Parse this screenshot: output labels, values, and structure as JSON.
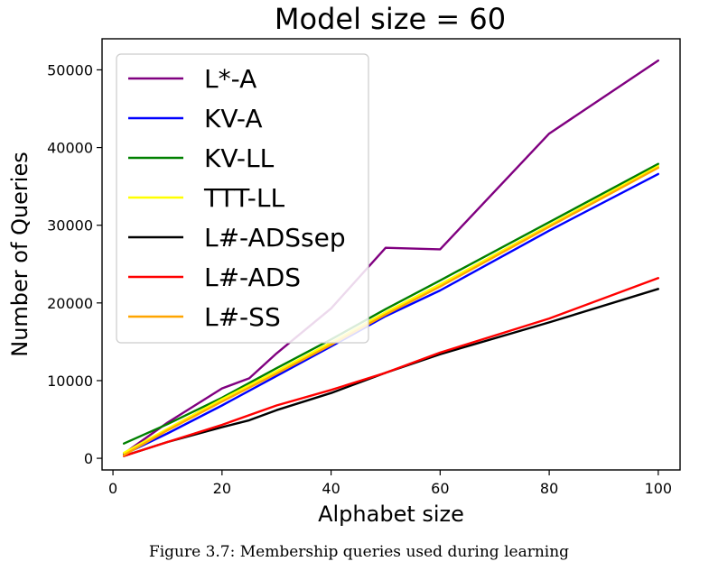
{
  "chart_data": {
    "type": "line",
    "title": "Model size = 60",
    "xlabel": "Alphabet size",
    "ylabel": "Number of Queries",
    "xlim": [
      -2,
      104
    ],
    "ylim": [
      -1500,
      54000
    ],
    "xticks": [
      0,
      20,
      40,
      60,
      80,
      100
    ],
    "yticks": [
      0,
      10000,
      20000,
      30000,
      40000,
      50000
    ],
    "legend_placement": "upper-left",
    "grid": false,
    "series": [
      {
        "name": "L*-A",
        "color": "#800080",
        "x": [
          2,
          10,
          20,
          25,
          30,
          40,
          50,
          60,
          80,
          100
        ],
        "y": [
          600,
          4600,
          9000,
          10300,
          13500,
          19300,
          27100,
          26900,
          41800,
          51200
        ]
      },
      {
        "name": "KV-A",
        "color": "#0000ff",
        "x": [
          2,
          10,
          20,
          30,
          40,
          50,
          60,
          80,
          100
        ],
        "y": [
          500,
          3200,
          6800,
          10600,
          14400,
          18300,
          21600,
          29300,
          36600
        ]
      },
      {
        "name": "KV-LL",
        "color": "#008000",
        "x": [
          2,
          10,
          20,
          30,
          40,
          50,
          60,
          80,
          100
        ],
        "y": [
          1900,
          4400,
          7800,
          11600,
          15300,
          19200,
          22900,
          30400,
          37900
        ]
      },
      {
        "name": "TTT-LL",
        "color": "#ffff00",
        "x": [
          2,
          10,
          20,
          30,
          40,
          50,
          60,
          80,
          100
        ],
        "y": [
          700,
          3800,
          7600,
          11200,
          14900,
          18800,
          22400,
          30000,
          37600
        ]
      },
      {
        "name": "L#-ADSsep",
        "color": "#000000",
        "x": [
          2,
          10,
          20,
          25,
          30,
          40,
          50,
          60,
          80,
          100
        ],
        "y": [
          300,
          2100,
          4000,
          4900,
          6200,
          8400,
          11000,
          13400,
          17500,
          21800
        ]
      },
      {
        "name": "L#-ADS",
        "color": "#ff0000",
        "x": [
          2,
          10,
          20,
          30,
          40,
          50,
          60,
          80,
          100
        ],
        "y": [
          300,
          2100,
          4300,
          6800,
          8800,
          11000,
          13600,
          18000,
          23200
        ]
      },
      {
        "name": "L#-SS",
        "color": "#ffa500",
        "x": [
          2,
          10,
          20,
          30,
          40,
          50,
          60,
          80,
          100
        ],
        "y": [
          400,
          3600,
          7300,
          10900,
          14600,
          18500,
          22100,
          29800,
          37400
        ]
      }
    ]
  },
  "caption": "Figure 3.7: Membership queries used during learning"
}
